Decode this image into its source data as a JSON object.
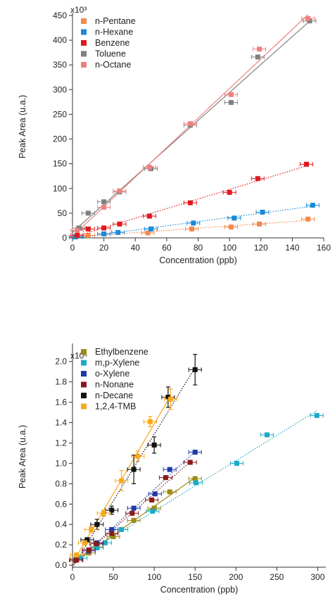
{
  "chart_data": [
    {
      "type": "scatter",
      "xlabel": "Concentration (ppb)",
      "ylabel": "Peak Area (u.a.)",
      "y_multiplier_label": "x10³",
      "xlim": [
        0,
        160
      ],
      "ylim": [
        0,
        450
      ],
      "xticks": [
        0,
        20,
        40,
        60,
        80,
        100,
        120,
        140,
        160
      ],
      "yticks": [
        0,
        50,
        100,
        150,
        200,
        250,
        300,
        350,
        400,
        450
      ],
      "legend_position": "top-left",
      "grid": false,
      "series": [
        {
          "name": "n-Pentane",
          "color": "#f4894a",
          "line_style": "dotted",
          "x": [
            2,
            10,
            20,
            48,
            76,
            101,
            119,
            150
          ],
          "y": [
            2,
            5,
            8,
            10,
            18,
            22,
            28,
            38
          ]
        },
        {
          "name": "n-Hexane",
          "color": "#1a8ad9",
          "line_style": "dotted",
          "x": [
            2,
            20,
            29,
            50,
            77,
            103,
            121,
            153
          ],
          "y": [
            2,
            8,
            11,
            18,
            30,
            40,
            52,
            66
          ]
        },
        {
          "name": "Benzene",
          "color": "#e0191e",
          "line_style": "dotted",
          "x": [
            3,
            10,
            20,
            30,
            49,
            75,
            100,
            118,
            149
          ],
          "y": [
            5,
            18,
            20,
            28,
            44,
            71,
            92,
            120,
            149
          ]
        },
        {
          "name": "Toluene",
          "color": "#808080",
          "line_style": "solid",
          "x": [
            4,
            10,
            20,
            30,
            50,
            75,
            101,
            118,
            151
          ],
          "y": [
            20,
            50,
            73,
            93,
            140,
            228,
            274,
            366,
            439
          ]
        },
        {
          "name": "n-Octane",
          "color": "#f08080",
          "line_style": "solid",
          "x": [
            3,
            20,
            30,
            49,
            75,
            101,
            119,
            150
          ],
          "y": [
            15,
            62,
            95,
            143,
            231,
            290,
            382,
            444
          ]
        }
      ]
    },
    {
      "type": "scatter",
      "xlabel": "Concentration (ppb)",
      "ylabel": "Peak Area (u.a.)",
      "y_multiplier_label": "x10⁶",
      "xlim": [
        0,
        310
      ],
      "ylim": [
        -0.02,
        2.15
      ],
      "xticks": [
        0,
        50,
        100,
        150,
        200,
        250,
        300
      ],
      "yticks": [
        0.0,
        0.2,
        0.4,
        0.6,
        0.8,
        1.0,
        1.2,
        1.4,
        1.6,
        1.8,
        2.0
      ],
      "ytick_labels": [
        "0.0",
        "0.2",
        "0.4",
        "0.6",
        "0.8",
        "1.0",
        "1.2",
        "1.4",
        "1.6",
        "1.8",
        "2.0"
      ],
      "legend_position": "top-left",
      "grid": false,
      "series": [
        {
          "name": "Ethylbenzene",
          "color": "#9c8a12",
          "line_style": "solid",
          "x": [
            5,
            20,
            30,
            50,
            75,
            100,
            119,
            150
          ],
          "y": [
            0.06,
            0.12,
            0.18,
            0.28,
            0.44,
            0.56,
            0.72,
            0.85
          ]
        },
        {
          "name": "m,p-Xylene",
          "color": "#1aaac4",
          "line_style": "dotted",
          "x": [
            10,
            30,
            40,
            60,
            98,
            151,
            201,
            238,
            299
          ],
          "y": [
            0.07,
            0.17,
            0.22,
            0.35,
            0.53,
            0.81,
            1.0,
            1.28,
            1.47
          ]
        },
        {
          "name": "o-Xylene",
          "color": "#1f3aa8",
          "line_style": "dotted",
          "x": [
            4,
            20,
            30,
            48,
            75,
            101,
            119,
            150
          ],
          "y": [
            0.05,
            0.14,
            0.22,
            0.35,
            0.56,
            0.7,
            0.94,
            1.11
          ]
        },
        {
          "name": "n-Nonane",
          "color": "#8b1a1a",
          "line_style": "dotted",
          "x": [
            5,
            20,
            29,
            48,
            73,
            97,
            114,
            144
          ],
          "y": [
            0.05,
            0.15,
            0.21,
            0.31,
            0.51,
            0.64,
            0.86,
            1.01
          ]
        },
        {
          "name": "n-Decane",
          "color": "#111111",
          "line_style": "dotted",
          "x": [
            18,
            30,
            48,
            75,
            100,
            117,
            150
          ],
          "y": [
            0.25,
            0.4,
            0.54,
            0.94,
            1.18,
            1.65,
            1.92
          ],
          "yerr": [
            0.02,
            0.05,
            0.04,
            0.14,
            0.08,
            0.1,
            0.15
          ]
        },
        {
          "name": "1,2,4-TMB",
          "color": "#f7a81b",
          "line_style": "solid",
          "x": [
            5,
            15,
            23,
            38,
            60,
            80,
            95,
            120
          ],
          "y": [
            0.1,
            0.22,
            0.35,
            0.51,
            0.83,
            1.07,
            1.41,
            1.63
          ],
          "yerr": [
            0.02,
            0.02,
            0.03,
            0.03,
            0.1,
            0.05,
            0.05,
            0.1
          ]
        }
      ]
    }
  ]
}
